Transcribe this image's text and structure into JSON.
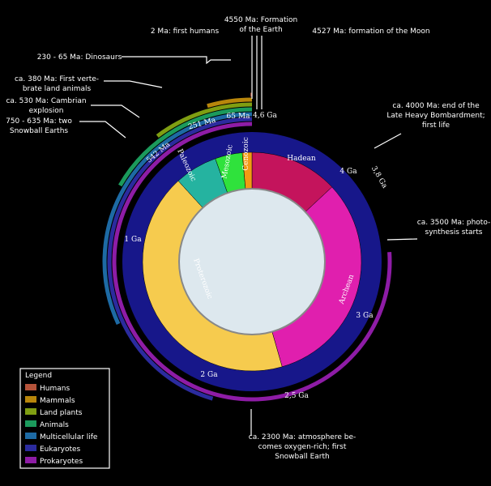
{
  "eons": [
    {
      "name": "Hadean",
      "color": "#c4145c"
    },
    {
      "name": "Archean",
      "color": "#e01fae"
    },
    {
      "name": "Proterozoic",
      "color": "#f6cb4e"
    },
    {
      "name": "Paleozoic",
      "color": "#25b3a0"
    },
    {
      "name": "Mesozoic",
      "color": "#2fe23c"
    },
    {
      "name": "Cenozoic",
      "color": "#f29a14"
    }
  ],
  "ticks": [
    "4,6 Ga",
    "65 Ma",
    "251 Ma",
    "542 Ma",
    "1 Ga",
    "2 Ga",
    "2,5 Ga",
    "3 Ga",
    "3,8 Ga",
    "4 Ga"
  ],
  "callouts": [
    {
      "lines": [
        "4550 Ma: Formation",
        "of the Earth"
      ]
    },
    {
      "lines": [
        "2 Ma: first humans"
      ]
    },
    {
      "lines": [
        "4527 Ma: formation of the Moon"
      ]
    },
    {
      "lines": [
        "230 - 65 Ma: Dinosaurs"
      ]
    },
    {
      "lines": [
        "ca. 380 Ma: First verte-",
        "brate land animals"
      ]
    },
    {
      "lines": [
        "ca. 530 Ma: Cambrian",
        "explosion"
      ]
    },
    {
      "lines": [
        "750 - 635 Ma: two",
        "Snowball Earths"
      ]
    },
    {
      "lines": [
        "ca. 4000 Ma: end of the",
        "Late Heavy Bombardment;",
        "first life"
      ]
    },
    {
      "lines": [
        "ca. 3500 Ma: photo-",
        "synthesis starts"
      ]
    },
    {
      "lines": [
        "ca. 2300 Ma: atmosphere be-",
        "comes oxygen-rich; first",
        "Snowball Earth"
      ]
    }
  ],
  "legend": {
    "title": "Legend",
    "items": [
      {
        "name": "Humans",
        "color": "#b5533a"
      },
      {
        "name": "Mammals",
        "color": "#b8860b"
      },
      {
        "name": "Land plants",
        "color": "#7f9e12"
      },
      {
        "name": "Animals",
        "color": "#1b9a5c"
      },
      {
        "name": "Multicellular life",
        "color": "#1d6aa4"
      },
      {
        "name": "Eukaryotes",
        "color": "#2b2b9e"
      },
      {
        "name": "Prokaryotes",
        "color": "#8e1ca6"
      }
    ]
  }
}
